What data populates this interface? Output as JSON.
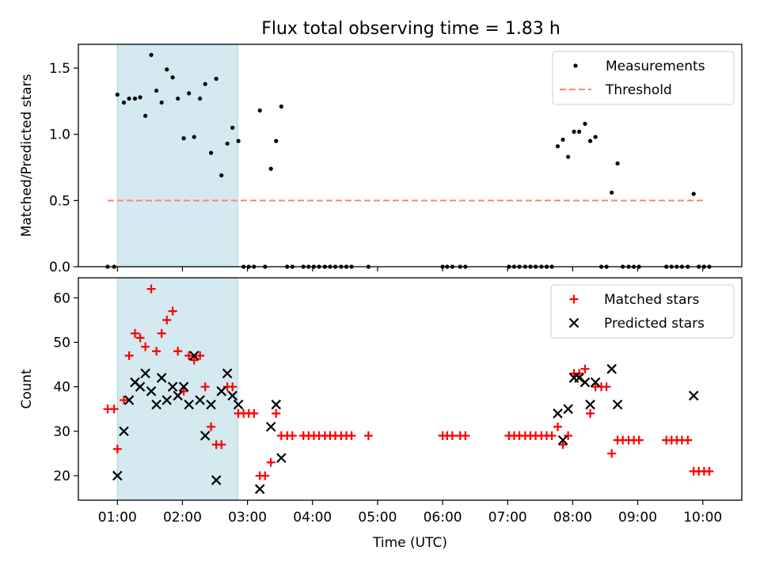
{
  "title": "Flux total observing time = 1.83 h",
  "colors": {
    "measurement": "#000000",
    "threshold": "#ff7f7f",
    "matched": "#ff0000",
    "predicted": "#000000",
    "shade": "#d4e9f0",
    "shade_edge": "#a9d4e2"
  },
  "chart_data": [
    {
      "type": "scatter",
      "panel": "top",
      "xlabel": "",
      "ylabel": "Matched/Predicted stars",
      "xlim": [
        0.4,
        10.6
      ],
      "ylim": [
        0,
        1.68
      ],
      "yticks": [
        0.0,
        0.5,
        1.0,
        1.5
      ],
      "ytick_labels": [
        "0.0",
        "0.5",
        "1.0",
        "1.5"
      ],
      "legend": {
        "position": "top-right",
        "entries": [
          "Measurements",
          "Threshold"
        ]
      },
      "shaded_span": [
        1.0,
        2.85
      ],
      "threshold": {
        "name": "Threshold",
        "value": 0.5,
        "x_range": [
          0.85,
          10.05
        ]
      },
      "series": [
        {
          "name": "Measurements",
          "x": [
            0.85,
            0.95,
            1.0,
            1.1,
            1.18,
            1.27,
            1.35,
            1.43,
            1.52,
            1.6,
            1.68,
            1.76,
            1.85,
            1.93,
            2.02,
            2.1,
            2.18,
            2.27,
            2.35,
            2.44,
            2.52,
            2.6,
            2.69,
            2.77,
            2.86,
            2.94,
            3.02,
            3.1,
            3.19,
            3.27,
            3.36,
            3.44,
            3.52,
            3.61,
            3.69,
            3.86,
            3.94,
            4.02,
            4.1,
            4.19,
            4.27,
            4.35,
            4.44,
            4.52,
            4.6,
            4.86,
            6.0,
            6.07,
            6.15,
            6.27,
            6.35,
            7.02,
            7.1,
            7.18,
            7.27,
            7.35,
            7.43,
            7.52,
            7.6,
            7.68,
            7.77,
            7.85,
            7.93,
            8.02,
            8.1,
            8.19,
            8.27,
            8.35,
            8.44,
            8.52,
            8.6,
            8.69,
            8.77,
            8.86,
            8.94,
            9.02,
            9.44,
            9.52,
            9.6,
            9.68,
            9.77,
            9.86,
            9.94,
            10.02,
            10.1
          ],
          "y": [
            0,
            0,
            1.3,
            1.24,
            1.27,
            1.27,
            1.28,
            1.14,
            1.6,
            1.33,
            1.24,
            1.49,
            1.43,
            1.27,
            0.97,
            1.31,
            0.98,
            1.27,
            1.38,
            0.86,
            1.42,
            0.69,
            0.93,
            1.05,
            0.95,
            0,
            0,
            0,
            1.18,
            0,
            0.74,
            0.95,
            1.21,
            0,
            0,
            0,
            0,
            0,
            0,
            0,
            0,
            0,
            0,
            0,
            0,
            0,
            0,
            0,
            0,
            0,
            0,
            0,
            0,
            0,
            0,
            0,
            0,
            0,
            0,
            0,
            0.91,
            0.96,
            0.83,
            1.02,
            1.02,
            1.08,
            0.95,
            0.98,
            0,
            0,
            0.56,
            0.78,
            0,
            0,
            0,
            0,
            0,
            0,
            0,
            0,
            0,
            0.55,
            0,
            0,
            0
          ]
        }
      ]
    },
    {
      "type": "scatter",
      "panel": "bottom",
      "xlabel": "Time (UTC)",
      "ylabel": "Count",
      "xlim": [
        0.4,
        10.6
      ],
      "ylim": [
        14.5,
        64.5
      ],
      "yticks": [
        20,
        30,
        40,
        50,
        60
      ],
      "ytick_labels": [
        "20",
        "30",
        "40",
        "50",
        "60"
      ],
      "xticks": [
        1,
        2,
        3,
        4,
        5,
        6,
        7,
        8,
        9,
        10
      ],
      "xtick_labels": [
        "01:00",
        "02:00",
        "03:00",
        "04:00",
        "05:00",
        "06:00",
        "07:00",
        "08:00",
        "09:00",
        "10:00"
      ],
      "legend": {
        "position": "top-right",
        "entries": [
          "Matched stars",
          "Predicted stars"
        ]
      },
      "shaded_span": [
        1.0,
        2.85
      ],
      "series": [
        {
          "name": "Matched stars",
          "marker": "+",
          "x": [
            0.85,
            0.95,
            1.0,
            1.1,
            1.18,
            1.27,
            1.35,
            1.43,
            1.52,
            1.6,
            1.68,
            1.76,
            1.85,
            1.93,
            2.02,
            2.1,
            2.18,
            2.27,
            2.35,
            2.44,
            2.52,
            2.6,
            2.69,
            2.77,
            2.86,
            2.94,
            3.02,
            3.1,
            3.19,
            3.27,
            3.36,
            3.44,
            3.52,
            3.61,
            3.69,
            3.86,
            3.94,
            4.02,
            4.1,
            4.19,
            4.27,
            4.35,
            4.44,
            4.52,
            4.6,
            4.86,
            6.0,
            6.07,
            6.15,
            6.27,
            6.35,
            7.02,
            7.1,
            7.18,
            7.27,
            7.35,
            7.43,
            7.52,
            7.6,
            7.68,
            7.77,
            7.85,
            7.93,
            8.02,
            8.1,
            8.19,
            8.27,
            8.35,
            8.44,
            8.52,
            8.6,
            8.69,
            8.77,
            8.86,
            8.94,
            9.02,
            9.44,
            9.52,
            9.6,
            9.68,
            9.77,
            9.86,
            9.94,
            10.02,
            10.1
          ],
          "y": [
            35,
            35,
            26,
            37,
            47,
            52,
            51,
            49,
            62,
            48,
            52,
            55,
            57,
            48,
            39,
            47,
            46,
            47,
            40,
            31,
            27,
            27,
            40,
            40,
            34,
            34,
            34,
            34,
            20,
            20,
            23,
            34,
            29,
            29,
            29,
            29,
            29,
            29,
            29,
            29,
            29,
            29,
            29,
            29,
            29,
            29,
            29,
            29,
            29,
            29,
            29,
            29,
            29,
            29,
            29,
            29,
            29,
            29,
            29,
            29,
            31,
            27,
            29,
            43,
            43,
            44,
            34,
            40,
            40,
            40,
            25,
            28,
            28,
            28,
            28,
            28,
            28,
            28,
            28,
            28,
            28,
            21,
            21,
            21,
            21
          ]
        },
        {
          "name": "Predicted stars",
          "marker": "x",
          "x": [
            1.0,
            1.1,
            1.18,
            1.27,
            1.35,
            1.43,
            1.52,
            1.6,
            1.68,
            1.76,
            1.85,
            1.93,
            2.02,
            2.1,
            2.18,
            2.27,
            2.35,
            2.44,
            2.52,
            2.6,
            2.69,
            2.77,
            2.86,
            3.19,
            3.36,
            3.44,
            3.52,
            7.77,
            7.85,
            7.93,
            8.02,
            8.1,
            8.19,
            8.27,
            8.35,
            8.6,
            8.69,
            9.86
          ],
          "y": [
            20,
            30,
            37,
            41,
            40,
            43,
            39,
            36,
            42,
            37,
            40,
            38,
            40,
            36,
            47,
            37,
            29,
            36,
            19,
            39,
            43,
            38,
            36,
            17,
            31,
            36,
            24,
            34,
            28,
            35,
            42,
            42,
            41,
            36,
            41,
            44,
            36,
            38
          ]
        }
      ]
    }
  ]
}
